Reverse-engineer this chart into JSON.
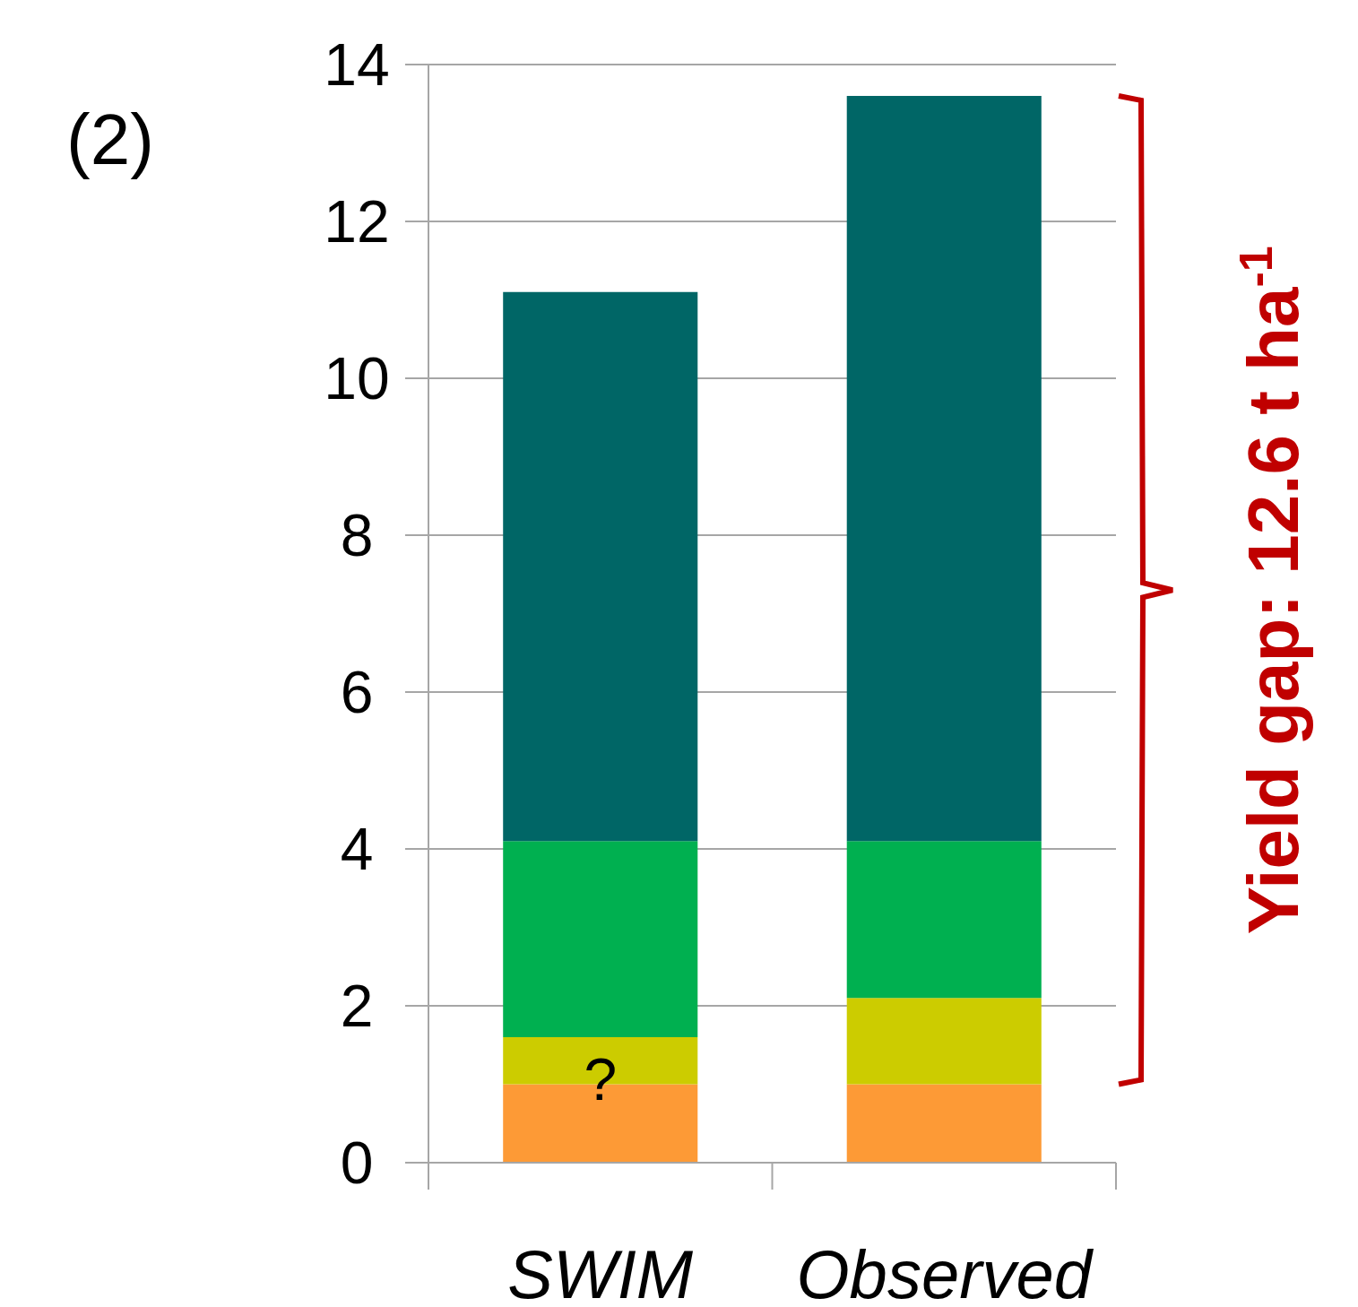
{
  "chart_data": {
    "type": "bar",
    "title": "(2)",
    "categories": [
      "SWIM",
      "Observed"
    ],
    "stacked": true,
    "series": [
      {
        "color": "#fd9a36",
        "values": [
          1.0,
          1.0
        ]
      },
      {
        "color": "#cccc00",
        "values": [
          0.6,
          1.1
        ]
      },
      {
        "color": "#00b050",
        "values": [
          2.5,
          2.0
        ]
      },
      {
        "color": "#006666",
        "values": [
          7.0,
          9.5
        ]
      }
    ],
    "ylim": [
      0,
      14
    ],
    "yticks": [
      0,
      2,
      4,
      6,
      8,
      10,
      12,
      14
    ],
    "grid": "y",
    "annotations": [
      "?",
      "Yield gap:  12.6 t ha$^{-1}$"
    ]
  }
}
